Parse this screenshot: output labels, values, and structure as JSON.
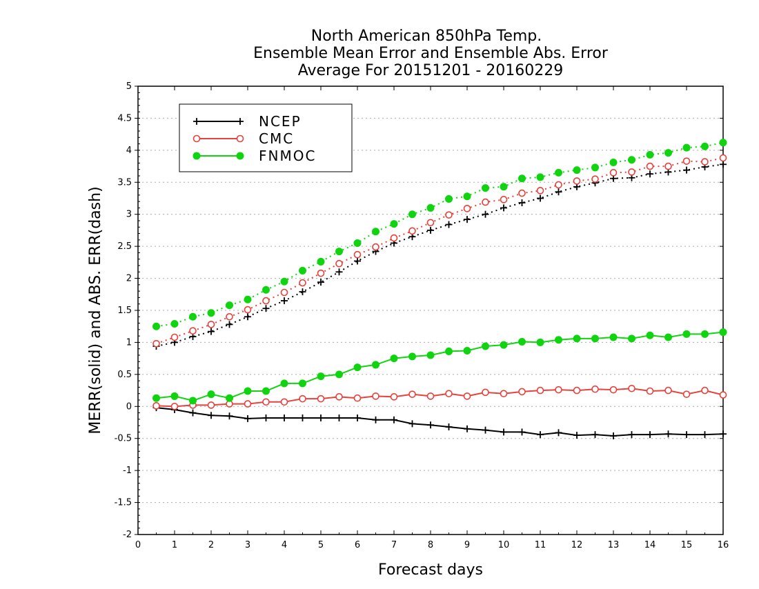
{
  "chart_data": {
    "type": "line",
    "title": [
      "North American 850hPa Temp.",
      "Ensemble Mean Error and Ensemble Abs. Error",
      "Average For 20151201 - 20160229"
    ],
    "xlabel": "Forecast days",
    "ylabel": "MERR(solid) and ABS. ERR(dash)",
    "xlim": [
      0,
      16
    ],
    "ylim": [
      -2,
      5
    ],
    "x_ticks": [
      "0",
      "1",
      "2",
      "3",
      "4",
      "5",
      "6",
      "7",
      "8",
      "9",
      "10",
      "11",
      "12",
      "13",
      "14",
      "15",
      "16"
    ],
    "y_ticks": [
      "5",
      "4.5",
      "4",
      "3.5",
      "3",
      "2.5",
      "2",
      "1.5",
      "1",
      "0.5",
      "0",
      "-0.5",
      "-1",
      "-1.5",
      "-2"
    ],
    "grid": "horizontal dotted",
    "legend_position": "top-left",
    "x": [
      0.5,
      1,
      1.5,
      2,
      2.5,
      3,
      3.5,
      4,
      4.5,
      5,
      5.5,
      6,
      6.5,
      7,
      7.5,
      8,
      8.5,
      9,
      9.5,
      10,
      10.5,
      11,
      11.5,
      12,
      12.5,
      13,
      13.5,
      14,
      14.5,
      15,
      15.5,
      16
    ],
    "series": [
      {
        "name": "NCEP",
        "color": "#000000",
        "marker": "plus",
        "solid": [
          -0.02,
          -0.05,
          -0.1,
          -0.14,
          -0.15,
          -0.19,
          -0.18,
          -0.18,
          -0.18,
          -0.18,
          -0.18,
          -0.18,
          -0.21,
          -0.21,
          -0.27,
          -0.29,
          -0.32,
          -0.35,
          -0.37,
          -0.4,
          -0.4,
          -0.44,
          -0.41,
          -0.45,
          -0.44,
          -0.46,
          -0.44,
          -0.44,
          -0.43,
          -0.44,
          -0.44,
          -0.43
        ],
        "dash": [
          0.94,
          1.0,
          1.09,
          1.17,
          1.28,
          1.4,
          1.53,
          1.65,
          1.79,
          1.94,
          2.1,
          2.27,
          2.42,
          2.55,
          2.65,
          2.75,
          2.84,
          2.92,
          3.0,
          3.1,
          3.18,
          3.25,
          3.35,
          3.43,
          3.49,
          3.56,
          3.57,
          3.63,
          3.66,
          3.69,
          3.74,
          3.78
        ]
      },
      {
        "name": "CMC",
        "color": "#e8413c",
        "marker": "open-circle",
        "solid": [
          0.01,
          0.0,
          0.02,
          0.02,
          0.04,
          0.04,
          0.07,
          0.07,
          0.12,
          0.12,
          0.15,
          0.13,
          0.16,
          0.15,
          0.19,
          0.16,
          0.2,
          0.16,
          0.22,
          0.2,
          0.23,
          0.25,
          0.26,
          0.25,
          0.27,
          0.26,
          0.28,
          0.24,
          0.25,
          0.19,
          0.25,
          0.18
        ],
        "dash": [
          0.98,
          1.08,
          1.18,
          1.28,
          1.4,
          1.51,
          1.65,
          1.78,
          1.93,
          2.08,
          2.23,
          2.37,
          2.49,
          2.63,
          2.74,
          2.87,
          2.99,
          3.09,
          3.19,
          3.23,
          3.33,
          3.37,
          3.46,
          3.52,
          3.55,
          3.65,
          3.66,
          3.75,
          3.75,
          3.83,
          3.82,
          3.88
        ]
      },
      {
        "name": "FNMOC",
        "color": "#0fd40f",
        "marker": "filled-circle",
        "solid": [
          0.13,
          0.16,
          0.09,
          0.19,
          0.13,
          0.24,
          0.24,
          0.36,
          0.36,
          0.47,
          0.5,
          0.61,
          0.65,
          0.75,
          0.78,
          0.8,
          0.86,
          0.87,
          0.94,
          0.96,
          1.01,
          1.0,
          1.04,
          1.06,
          1.06,
          1.08,
          1.06,
          1.11,
          1.08,
          1.13,
          1.13,
          1.16
        ],
        "dash": [
          1.25,
          1.29,
          1.4,
          1.46,
          1.58,
          1.67,
          1.82,
          1.95,
          2.12,
          2.26,
          2.42,
          2.55,
          2.73,
          2.85,
          3.0,
          3.1,
          3.24,
          3.28,
          3.41,
          3.43,
          3.56,
          3.58,
          3.65,
          3.69,
          3.73,
          3.81,
          3.85,
          3.93,
          3.96,
          4.04,
          4.06,
          4.12
        ]
      }
    ]
  }
}
